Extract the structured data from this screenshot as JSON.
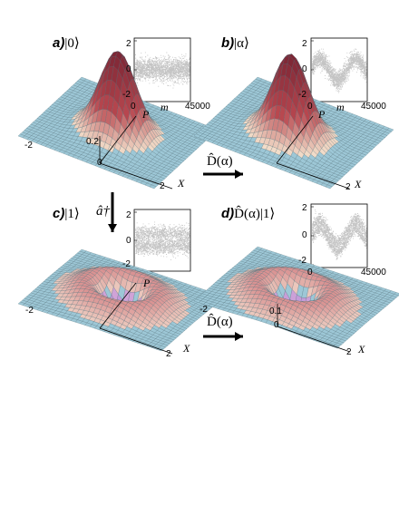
{
  "panels": [
    {
      "id": "a",
      "letter": "a)",
      "ket": "|0⟩",
      "type": "vacuum"
    },
    {
      "id": "b",
      "letter": "b)",
      "ket": "|α⟩",
      "type": "coherent"
    },
    {
      "id": "c",
      "letter": "c)",
      "ket": "|1⟩",
      "type": "fock1"
    },
    {
      "id": "d",
      "letter": "d)",
      "ket": "D̂(α)|1⟩",
      "type": "displaced-fock1"
    }
  ],
  "insets": {
    "y_ticks": [
      "2",
      "0",
      "-2"
    ],
    "x_ticks": [
      "0",
      "45000"
    ],
    "x_label": "m"
  },
  "surface_axes": {
    "x_label": "X",
    "p_label": "P",
    "x_ticks": [
      "-2",
      "0",
      "2"
    ],
    "peak_label_a": "0.2",
    "peak_label_d": "0.1"
  },
  "operators": {
    "displacement": "D̂(α)",
    "creation": "â†"
  },
  "colors": {
    "mesh": "#9dc7d6",
    "mesh_line": "#4f6f78",
    "peak_red": "#b8474f",
    "peak_blue": "#8a7fe0",
    "noise": "#555555"
  }
}
